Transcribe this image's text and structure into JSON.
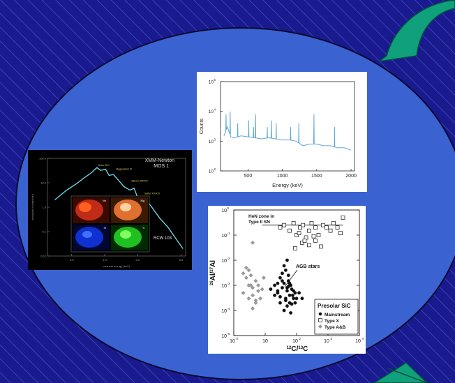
{
  "colors": {
    "background": "#181a8e",
    "stripe": "#3c3fb8",
    "ellipse": "#3a62d0",
    "arrow": "#10a07c",
    "gamma_line": "#5ea8d6",
    "xmm_line": "#6cd0e0"
  },
  "xmm": {
    "title_line1": "XMM-Newton",
    "title_line2": "MOS 1",
    "ylabel": "normalized counts/s/keV",
    "xlabel": "channel energy (keV)",
    "yticks": [
      "100.0",
      "10.0",
      "1.0",
      "0.1",
      "0.01"
    ],
    "xticks": [
      "0.5",
      "1.0",
      "2.0",
      "5.0"
    ],
    "lines": [
      "Neon IX/X",
      "Magnesium XI",
      "Silicon XIII/XIV",
      "Sulfur XV/XVI"
    ],
    "object": "RCW 103",
    "insets": [
      "Ne",
      "Mg",
      "Si",
      "S"
    ]
  },
  "gamma": {
    "ylabel": "Counts",
    "xlabel": "Energy (keV)",
    "yticks": [
      "10",
      "10",
      "10",
      "10"
    ],
    "yexps": [
      "5",
      "4",
      "3",
      "2"
    ],
    "xticks": [
      "500",
      "1000",
      "1500",
      "2000"
    ]
  },
  "sic": {
    "ylabel_prefix": "26",
    "ylabel_mid": "Al/",
    "ylabel_sup2": "27",
    "ylabel_end": "Al",
    "xlabel_sup1": "12",
    "xlabel_mid": "C/",
    "xlabel_sup2": "13",
    "xlabel_end": "C",
    "yticks_base": "10",
    "yexps": [
      "0",
      "-1",
      "-2",
      "-3",
      "-4",
      "-5"
    ],
    "xticks_base": "10",
    "xexps": [
      "0",
      "",
      "",
      "2",
      "3",
      "4"
    ],
    "xticks_plain": [
      "",
      "1",
      "10",
      "",
      "",
      ""
    ],
    "hen_line1": "HeN zone in",
    "hen_line2": "Type II SN",
    "agb_label": "AGB stars",
    "legend_title": "Presolar SiC",
    "legend_items": [
      "Mainstream",
      "Type X",
      "Type A&B"
    ]
  },
  "chart_data": [
    {
      "type": "line",
      "title": "XMM-Newton MOS 1",
      "xlabel": "channel energy (keV)",
      "ylabel": "normalized counts/s/keV",
      "x_scale": "log",
      "y_scale": "log",
      "xlim": [
        0.3,
        5.5
      ],
      "ylim": [
        0.01,
        100
      ],
      "series": [
        {
          "name": "RCW 103",
          "x": [
            0.35,
            0.45,
            0.55,
            0.65,
            0.75,
            0.85,
            0.92,
            1.02,
            1.1,
            1.2,
            1.35,
            1.5,
            1.7,
            1.86,
            2.0,
            2.2,
            2.45,
            2.8,
            3.2,
            3.8,
            4.5,
            5.2
          ],
          "y": [
            2,
            5,
            9,
            16,
            25,
            42,
            32,
            36,
            20,
            22,
            12,
            7,
            5,
            6,
            2.5,
            2.2,
            1.8,
            0.8,
            0.35,
            0.15,
            0.05,
            0.02
          ]
        }
      ],
      "annotations": [
        "Neon IX/X",
        "Magnesium XI",
        "Silicon XIII/XIV",
        "Sulfur XV/XVI",
        "RCW 103"
      ]
    },
    {
      "type": "line",
      "xlabel": "Energy (keV)",
      "ylabel": "Counts",
      "y_scale": "log",
      "xlim": [
        100,
        2050
      ],
      "ylim": [
        100,
        100000
      ],
      "series": [
        {
          "name": "",
          "x": [
            150,
            200,
            250,
            300,
            400,
            500,
            600,
            700,
            800,
            900,
            1000,
            1100,
            1200,
            1300,
            1400,
            1500,
            1600,
            1700,
            1800,
            1900,
            2000
          ],
          "y": [
            1500,
            3000,
            1400,
            1300,
            1500,
            1400,
            1300,
            1200,
            1300,
            1200,
            1100,
            1100,
            1000,
            700,
            800,
            800,
            700,
            700,
            600,
            600,
            500
          ]
        }
      ],
      "peaks": [
        {
          "x": 180,
          "y": 8000
        },
        {
          "x": 240,
          "y": 10000
        },
        {
          "x": 350,
          "y": 4000
        },
        {
          "x": 510,
          "y": 5000
        },
        {
          "x": 580,
          "y": 3000
        },
        {
          "x": 610,
          "y": 8000
        },
        {
          "x": 780,
          "y": 3000
        },
        {
          "x": 840,
          "y": 5000
        },
        {
          "x": 910,
          "y": 4000
        },
        {
          "x": 1120,
          "y": 3000
        },
        {
          "x": 1240,
          "y": 4000
        },
        {
          "x": 1460,
          "y": 8000
        },
        {
          "x": 1760,
          "y": 3000
        }
      ]
    },
    {
      "type": "scatter",
      "xlabel": "12C/13C",
      "ylabel": "26Al/27Al",
      "x_scale": "log",
      "y_scale": "log",
      "xlim": [
        1,
        10000
      ],
      "ylim": [
        1e-05,
        1
      ],
      "lines": [
        {
          "label": "HeN zone in Type II SN",
          "y": 0.25
        }
      ],
      "annotations": [
        "AGB stars"
      ],
      "legend": "bottom-right",
      "series": [
        {
          "name": "Mainstream",
          "marker": "filled-circle",
          "x": [
            20,
            25,
            30,
            35,
            40,
            45,
            50,
            55,
            60,
            70,
            80,
            90,
            30,
            40,
            50,
            60,
            35,
            45,
            55,
            65,
            25,
            50,
            75,
            100,
            40,
            60,
            30,
            45,
            70,
            20,
            15,
            50,
            80,
            35,
            55,
            120,
            150,
            25,
            65,
            90
          ],
          "y": [
            0.001,
            0.0005,
            0.002,
            0.0008,
            0.0012,
            0.0003,
            0.0006,
            0.0015,
            0.0004,
            0.0007,
            0.0003,
            0.0005,
            0.0002,
            0.0001,
            0.00015,
            0.0002,
            0.003,
            0.004,
            0.0025,
            0.001,
            0.0006,
            0.0008,
            0.0004,
            0.0003,
            0.006,
            0.0012,
            0.00035,
            0.00025,
            0.00018,
            0.0004,
            0.0007,
            0.01,
            0.0006,
            0.0015,
            0.0009,
            0.0005,
            0.0003,
            0.0012,
            8e-05,
            0.0002
          ]
        },
        {
          "name": "Type X",
          "marker": "open-square",
          "x": [
            30,
            40,
            60,
            80,
            100,
            130,
            160,
            200,
            250,
            300,
            400,
            500,
            700,
            900,
            1200,
            1500,
            2000,
            2500,
            3000,
            150,
            250,
            400,
            600,
            90,
            120,
            180,
            350
          ],
          "y": [
            0.2,
            0.25,
            0.15,
            0.3,
            0.1,
            0.2,
            0.25,
            0.08,
            0.15,
            0.3,
            0.2,
            0.1,
            0.25,
            0.2,
            0.15,
            0.3,
            0.2,
            0.12,
            0.5,
            0.05,
            0.04,
            0.06,
            0.035,
            0.03,
            0.12,
            0.06,
            0.09
          ]
        },
        {
          "name": "Type A&B",
          "marker": "filled-diamond",
          "x": [
            2,
            2.5,
            3,
            3.5,
            4,
            5,
            6,
            2,
            3,
            4,
            5,
            7,
            2.5,
            3.5,
            6,
            8,
            4,
            5,
            3,
            9
          ],
          "y": [
            0.003,
            0.002,
            0.004,
            0.001,
            0.0008,
            0.0015,
            0.0006,
            0.0005,
            0.0003,
            0.0004,
            0.0002,
            0.0003,
            0.005,
            0.0025,
            0.001,
            0.0007,
            0.00012,
            0.00025,
            0.001,
            0.002
          ]
        }
      ],
      "extra_points": [
        {
          "series": "Type A&B",
          "x": 4,
          "y": 0.05
        }
      ]
    }
  ]
}
